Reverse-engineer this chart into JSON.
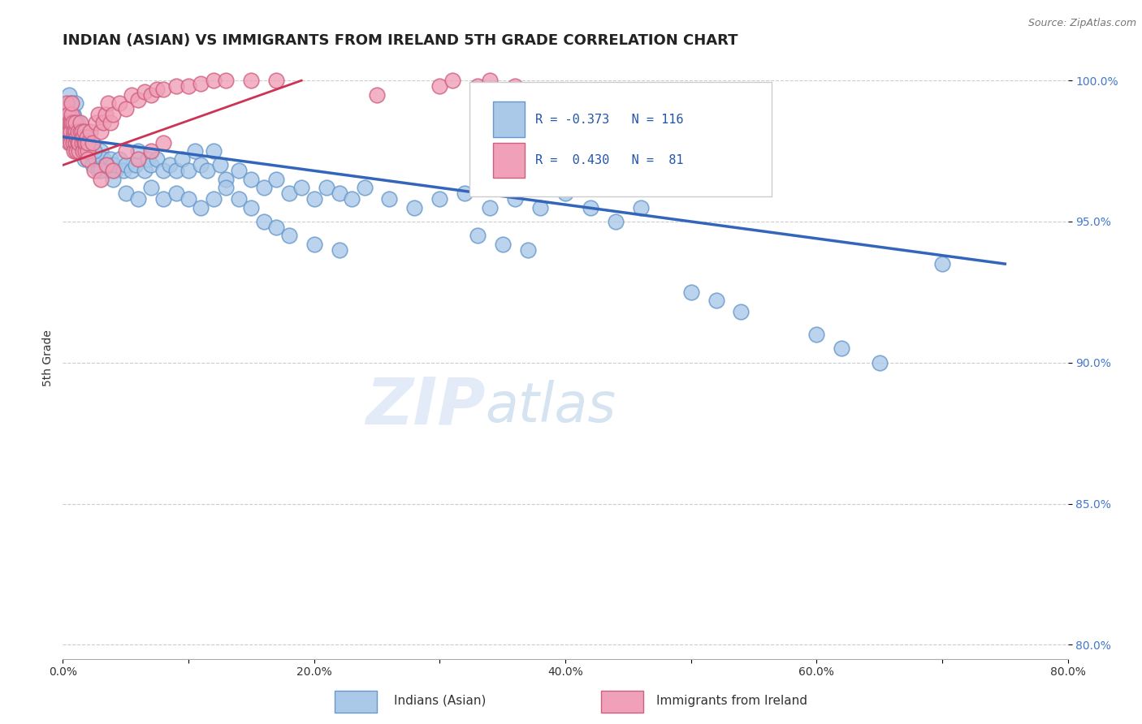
{
  "title": "INDIAN (ASIAN) VS IMMIGRANTS FROM IRELAND 5TH GRADE CORRELATION CHART",
  "source_text": "Source: ZipAtlas.com",
  "ylabel": "5th Grade",
  "xlim": [
    0.0,
    0.8
  ],
  "ylim": [
    0.795,
    1.008
  ],
  "xticks": [
    0.0,
    0.1,
    0.2,
    0.3,
    0.4,
    0.5,
    0.6,
    0.7,
    0.8
  ],
  "xticklabels": [
    "0.0%",
    "",
    "20.0%",
    "",
    "40.0%",
    "",
    "60.0%",
    "",
    "80.0%"
  ],
  "yticks": [
    0.8,
    0.85,
    0.9,
    0.95,
    1.0
  ],
  "yticklabels": [
    "80.0%",
    "85.0%",
    "90.0%",
    "95.0%",
    "100.0%"
  ],
  "blue_color": "#aac8e8",
  "pink_color": "#f0a0b8",
  "blue_edge_color": "#6699cc",
  "pink_edge_color": "#d06080",
  "blue_line_color": "#3366bb",
  "pink_line_color": "#cc3355",
  "legend_blue_r": "R = -0.373",
  "legend_blue_n": "N = 116",
  "legend_pink_r": "R =  0.430",
  "legend_pink_n": "N =  81",
  "watermark_zip": "ZIP",
  "watermark_atlas": "atlas",
  "title_fontsize": 13,
  "axis_label_fontsize": 10,
  "tick_fontsize": 10,
  "blue_scatter_x": [
    0.002,
    0.003,
    0.004,
    0.004,
    0.005,
    0.005,
    0.006,
    0.006,
    0.007,
    0.007,
    0.008,
    0.008,
    0.009,
    0.009,
    0.01,
    0.01,
    0.011,
    0.012,
    0.013,
    0.014,
    0.015,
    0.016,
    0.017,
    0.018,
    0.019,
    0.02,
    0.022,
    0.024,
    0.026,
    0.028,
    0.03,
    0.032,
    0.034,
    0.036,
    0.038,
    0.04,
    0.042,
    0.045,
    0.048,
    0.05,
    0.055,
    0.058,
    0.06,
    0.065,
    0.068,
    0.07,
    0.075,
    0.08,
    0.085,
    0.09,
    0.095,
    0.1,
    0.105,
    0.11,
    0.115,
    0.12,
    0.125,
    0.13,
    0.14,
    0.15,
    0.16,
    0.17,
    0.18,
    0.19,
    0.2,
    0.21,
    0.22,
    0.23,
    0.24,
    0.26,
    0.28,
    0.3,
    0.32,
    0.34,
    0.36,
    0.38,
    0.4,
    0.42,
    0.44,
    0.46,
    0.005,
    0.008,
    0.01,
    0.012,
    0.015,
    0.018,
    0.02,
    0.025,
    0.03,
    0.04,
    0.05,
    0.06,
    0.07,
    0.08,
    0.09,
    0.1,
    0.11,
    0.12,
    0.13,
    0.14,
    0.15,
    0.16,
    0.17,
    0.18,
    0.2,
    0.22,
    0.33,
    0.35,
    0.37,
    0.5,
    0.52,
    0.54,
    0.6,
    0.62,
    0.65,
    0.7
  ],
  "blue_scatter_y": [
    0.99,
    0.988,
    0.985,
    0.992,
    0.98,
    0.995,
    0.982,
    0.988,
    0.985,
    0.992,
    0.98,
    0.988,
    0.985,
    0.978,
    0.982,
    0.975,
    0.98,
    0.978,
    0.975,
    0.98,
    0.978,
    0.975,
    0.972,
    0.978,
    0.975,
    0.972,
    0.975,
    0.97,
    0.972,
    0.968,
    0.975,
    0.972,
    0.97,
    0.968,
    0.972,
    0.97,
    0.968,
    0.972,
    0.968,
    0.97,
    0.968,
    0.97,
    0.975,
    0.968,
    0.972,
    0.97,
    0.972,
    0.968,
    0.97,
    0.968,
    0.972,
    0.968,
    0.975,
    0.97,
    0.968,
    0.975,
    0.97,
    0.965,
    0.968,
    0.965,
    0.962,
    0.965,
    0.96,
    0.962,
    0.958,
    0.962,
    0.96,
    0.958,
    0.962,
    0.958,
    0.955,
    0.958,
    0.96,
    0.955,
    0.958,
    0.955,
    0.96,
    0.955,
    0.95,
    0.955,
    0.985,
    0.988,
    0.992,
    0.985,
    0.98,
    0.975,
    0.978,
    0.975,
    0.968,
    0.965,
    0.96,
    0.958,
    0.962,
    0.958,
    0.96,
    0.958,
    0.955,
    0.958,
    0.962,
    0.958,
    0.955,
    0.95,
    0.948,
    0.945,
    0.942,
    0.94,
    0.945,
    0.942,
    0.94,
    0.925,
    0.922,
    0.918,
    0.91,
    0.905,
    0.9,
    0.935
  ],
  "pink_scatter_x": [
    0.002,
    0.003,
    0.003,
    0.004,
    0.004,
    0.005,
    0.005,
    0.005,
    0.006,
    0.006,
    0.006,
    0.007,
    0.007,
    0.007,
    0.008,
    0.008,
    0.008,
    0.009,
    0.009,
    0.01,
    0.01,
    0.01,
    0.011,
    0.011,
    0.012,
    0.012,
    0.013,
    0.013,
    0.014,
    0.014,
    0.015,
    0.015,
    0.016,
    0.016,
    0.017,
    0.017,
    0.018,
    0.018,
    0.019,
    0.02,
    0.02,
    0.022,
    0.024,
    0.026,
    0.028,
    0.03,
    0.032,
    0.034,
    0.036,
    0.038,
    0.04,
    0.045,
    0.05,
    0.055,
    0.06,
    0.065,
    0.07,
    0.075,
    0.08,
    0.09,
    0.1,
    0.11,
    0.12,
    0.13,
    0.15,
    0.17,
    0.02,
    0.025,
    0.03,
    0.035,
    0.04,
    0.05,
    0.06,
    0.07,
    0.08,
    0.25,
    0.3,
    0.31,
    0.33,
    0.34,
    0.36
  ],
  "pink_scatter_y": [
    0.99,
    0.985,
    0.992,
    0.988,
    0.98,
    0.982,
    0.985,
    0.978,
    0.985,
    0.982,
    0.978,
    0.985,
    0.988,
    0.992,
    0.98,
    0.985,
    0.978,
    0.975,
    0.982,
    0.978,
    0.982,
    0.985,
    0.975,
    0.98,
    0.978,
    0.982,
    0.975,
    0.978,
    0.982,
    0.985,
    0.978,
    0.982,
    0.975,
    0.98,
    0.978,
    0.982,
    0.975,
    0.978,
    0.98,
    0.975,
    0.978,
    0.982,
    0.978,
    0.985,
    0.988,
    0.982,
    0.985,
    0.988,
    0.992,
    0.985,
    0.988,
    0.992,
    0.99,
    0.995,
    0.993,
    0.996,
    0.995,
    0.997,
    0.997,
    0.998,
    0.998,
    0.999,
    1.0,
    1.0,
    1.0,
    1.0,
    0.972,
    0.968,
    0.965,
    0.97,
    0.968,
    0.975,
    0.972,
    0.975,
    0.978,
    0.995,
    0.998,
    1.0,
    0.998,
    1.0,
    0.998
  ],
  "blue_trendline_x": [
    0.0,
    0.75
  ],
  "blue_trendline_y": [
    0.98,
    0.935
  ],
  "pink_trendline_x": [
    0.0,
    0.19
  ],
  "pink_trendline_y": [
    0.97,
    1.0
  ]
}
